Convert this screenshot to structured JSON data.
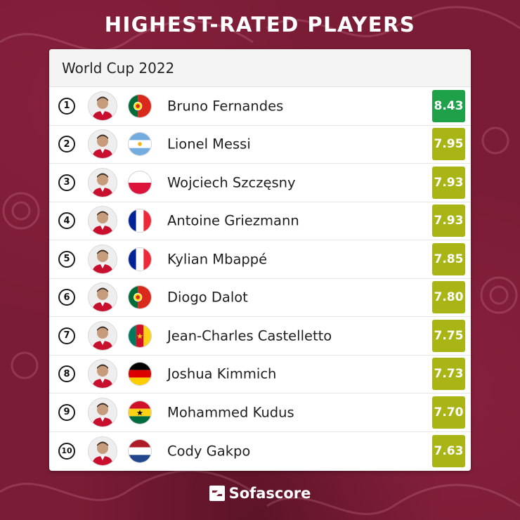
{
  "header": {
    "title": "HIGHEST-RATED PLAYERS"
  },
  "card": {
    "subtitle": "World Cup 2022"
  },
  "players": [
    {
      "rank": "1",
      "name": "Bruno Fernandes",
      "rating": "8.43",
      "country_flag": "portugal",
      "rating_color": "#1fa14a"
    },
    {
      "rank": "2",
      "name": "Lionel Messi",
      "rating": "7.95",
      "country_flag": "argentina",
      "rating_color": "#a9b515"
    },
    {
      "rank": "3",
      "name": "Wojciech Szczęsny",
      "rating": "7.93",
      "country_flag": "poland",
      "rating_color": "#a9b515"
    },
    {
      "rank": "4",
      "name": "Antoine Griezmann",
      "rating": "7.93",
      "country_flag": "france",
      "rating_color": "#a9b515"
    },
    {
      "rank": "5",
      "name": "Kylian Mbappé",
      "rating": "7.85",
      "country_flag": "france",
      "rating_color": "#a9b515"
    },
    {
      "rank": "6",
      "name": "Diogo Dalot",
      "rating": "7.80",
      "country_flag": "portugal",
      "rating_color": "#a9b515"
    },
    {
      "rank": "7",
      "name": "Jean-Charles Castelletto",
      "rating": "7.75",
      "country_flag": "cameroon",
      "rating_color": "#a9b515"
    },
    {
      "rank": "8",
      "name": "Joshua Kimmich",
      "rating": "7.73",
      "country_flag": "germany",
      "rating_color": "#a9b515"
    },
    {
      "rank": "9",
      "name": "Mohammed Kudus",
      "rating": "7.70",
      "country_flag": "ghana",
      "rating_color": "#a9b515"
    },
    {
      "rank": "10",
      "name": "Cody Gakpo",
      "rating": "7.63",
      "country_flag": "netherlands",
      "rating_color": "#a9b515"
    }
  ],
  "footer": {
    "brand": "Sofascore",
    "brand_icon": "sofascore-logo-icon"
  },
  "colors": {
    "background": "#7a1c35",
    "rating_top": "#1fa14a",
    "rating_default": "#a9b515"
  }
}
